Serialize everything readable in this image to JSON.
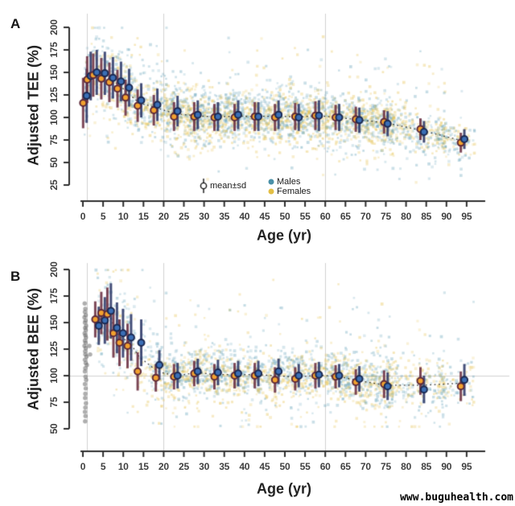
{
  "watermark": "www.buguhealth.com",
  "colors": {
    "male_point": "#61a0b8",
    "female_point": "#e5c04b",
    "male_mean_fill": "#3b6fb6",
    "male_mean_stroke": "#1c2a52",
    "female_mean_fill": "#f3a22f",
    "female_mean_stroke": "#5f2b3a",
    "male_errorbar": "#323d6b",
    "female_errorbar": "#6e3345",
    "gray_point": "#6b6b6b",
    "grid": "#d0d0d0",
    "axis": "#2e2e2e",
    "trend": "#3a3a3a",
    "legend_male_dot": "#4a90a8",
    "legend_female_dot": "#e3bf45"
  },
  "chart_data": [
    {
      "panel": "A",
      "type": "scatter",
      "ylabel": "Adjusted TEE (%)",
      "xlabel": "Age (yr)",
      "ylim": [
        25,
        200
      ],
      "xlim": [
        0,
        97
      ],
      "y_ticks": [
        25,
        50,
        75,
        100,
        125,
        150,
        175,
        200
      ],
      "x_ticks": [
        0,
        5,
        10,
        15,
        20,
        25,
        30,
        35,
        40,
        45,
        50,
        55,
        60,
        65,
        70,
        75,
        80,
        85,
        90,
        95
      ],
      "gridlines_x": [
        1,
        20,
        60
      ],
      "gridlines_y": [],
      "grid": true,
      "legend_position": "inside-bottom-center",
      "legend": {
        "mean_sd": "mean±sd",
        "males": "Males",
        "females": "Females"
      },
      "bins": {
        "ages": [
          0.5,
          1.5,
          3,
          5,
          7,
          9,
          11,
          14,
          18,
          23,
          28,
          33,
          38,
          43,
          48,
          53,
          58,
          63,
          68,
          75,
          84,
          94
        ],
        "male_mean": [
          124,
          146,
          150,
          149,
          144,
          140,
          133,
          119,
          114,
          107,
          103,
          101,
          103,
          101,
          103,
          100,
          102,
          100,
          97,
          93,
          84,
          76
        ],
        "female_mean": [
          116,
          142,
          147,
          143,
          139,
          132,
          122,
          113,
          108,
          101,
          101,
          100,
          100,
          101,
          100,
          101,
          102,
          100,
          98,
          95,
          87,
          72
        ],
        "male_sd": [
          30,
          27,
          25,
          24,
          23,
          22,
          21,
          19,
          18,
          17,
          16,
          16,
          16,
          16,
          16,
          15,
          17,
          15,
          14,
          14,
          12,
          11
        ],
        "female_sd": [
          28,
          26,
          24,
          23,
          22,
          21,
          20,
          18,
          17,
          16,
          16,
          15,
          15,
          16,
          15,
          15,
          16,
          14,
          14,
          13,
          12,
          11
        ]
      },
      "scatter_spec": {
        "seed": 11,
        "n_per_sex": 1600,
        "age_min": 0.3,
        "kid_frac": 0.17
      },
      "gray_points": []
    },
    {
      "panel": "B",
      "type": "scatter",
      "ylabel": "Adjusted BEE (%)",
      "xlabel": "Age (yr)",
      "ylim": [
        50,
        200
      ],
      "xlim": [
        0,
        97
      ],
      "y_ticks": [
        50,
        75,
        100,
        125,
        150,
        175,
        200
      ],
      "x_ticks": [
        0,
        5,
        10,
        15,
        20,
        25,
        30,
        35,
        40,
        45,
        50,
        55,
        60,
        65,
        70,
        75,
        80,
        85,
        90,
        95
      ],
      "gridlines_x": [
        1,
        20,
        60
      ],
      "gridlines_y": [
        100
      ],
      "grid": true,
      "bins": {
        "ages": [
          3.5,
          5,
          6.5,
          8,
          9.5,
          11.5,
          14,
          18.5,
          23,
          28,
          33,
          38,
          43,
          48,
          53,
          58,
          63,
          68,
          75,
          84,
          94
        ],
        "male_mean": [
          147,
          152,
          161,
          145,
          140,
          136,
          131,
          110,
          100,
          104,
          103,
          102,
          102,
          104,
          100,
          101,
          100,
          97,
          90,
          87,
          96
        ],
        "female_mean": [
          153,
          159,
          158,
          140,
          131,
          128,
          104,
          98,
          99,
          102,
          99,
          100,
          100,
          96,
          97,
          100,
          99,
          94,
          92,
          95,
          90
        ],
        "male_sd": [
          18,
          22,
          26,
          24,
          23,
          22,
          22,
          14,
          12,
          12,
          12,
          12,
          12,
          12,
          11,
          12,
          11,
          12,
          13,
          13,
          15
        ],
        "female_sd": [
          17,
          20,
          25,
          23,
          22,
          21,
          18,
          13,
          12,
          12,
          12,
          12,
          12,
          12,
          11,
          12,
          11,
          12,
          13,
          13,
          14
        ]
      },
      "scatter_spec": {
        "seed": 23,
        "n_per_sex": 1150,
        "age_min": 3.2,
        "kid_frac": 0.13
      },
      "gray_points": [
        [
          0.45,
          168
        ],
        [
          0.6,
          163
        ],
        [
          0.5,
          160
        ],
        [
          0.7,
          157
        ],
        [
          0.4,
          155
        ],
        [
          0.65,
          152
        ],
        [
          0.5,
          150
        ],
        [
          0.8,
          147
        ],
        [
          0.55,
          145
        ],
        [
          0.7,
          143
        ],
        [
          0.45,
          140
        ],
        [
          0.6,
          138
        ],
        [
          0.75,
          136
        ],
        [
          0.5,
          133
        ],
        [
          0.65,
          131
        ],
        [
          0.4,
          128
        ],
        [
          0.7,
          126
        ],
        [
          0.55,
          123
        ],
        [
          0.6,
          120
        ],
        [
          0.9,
          118
        ],
        [
          0.5,
          115
        ],
        [
          0.7,
          112
        ],
        [
          1.0,
          110
        ],
        [
          0.6,
          107
        ],
        [
          0.5,
          104
        ],
        [
          0.65,
          99
        ],
        [
          0.8,
          96
        ],
        [
          0.5,
          92
        ],
        [
          0.7,
          88
        ],
        [
          0.6,
          83
        ],
        [
          0.55,
          79
        ],
        [
          0.75,
          74
        ],
        [
          0.6,
          70
        ],
        [
          0.5,
          66
        ],
        [
          0.65,
          62
        ],
        [
          0.55,
          57
        ],
        [
          1.6,
          128
        ],
        [
          1.8,
          120
        ]
      ]
    }
  ]
}
